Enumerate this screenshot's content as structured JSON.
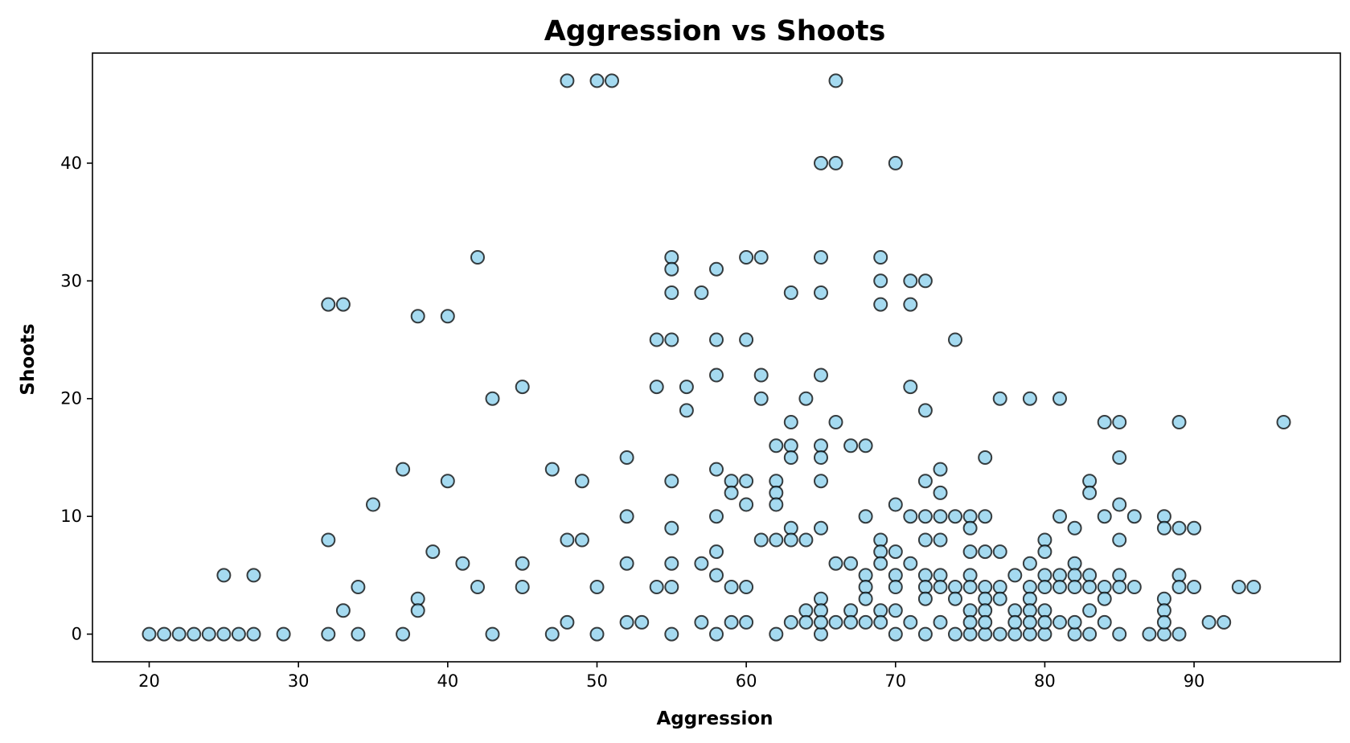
{
  "chart_data": {
    "type": "scatter",
    "title": "Aggression vs Shoots",
    "xlabel": "Aggression",
    "ylabel": "Shoots",
    "xlim": [
      16.2,
      99.8
    ],
    "ylim": [
      -2.35,
      49.35
    ],
    "xticks": [
      20,
      30,
      40,
      50,
      60,
      70,
      80,
      90
    ],
    "yticks": [
      0,
      10,
      20,
      30,
      40
    ],
    "grid": false,
    "marker_fill": "#87CEEB",
    "marker_edge": "#000000",
    "points": [
      [
        20,
        0
      ],
      [
        21,
        0
      ],
      [
        22,
        0
      ],
      [
        23,
        0
      ],
      [
        24,
        0
      ],
      [
        25,
        0
      ],
      [
        26,
        0
      ],
      [
        27,
        0
      ],
      [
        29,
        0
      ],
      [
        32,
        0
      ],
      [
        34,
        0
      ],
      [
        37,
        0
      ],
      [
        43,
        0
      ],
      [
        47,
        0
      ],
      [
        50,
        0
      ],
      [
        55,
        0
      ],
      [
        58,
        0
      ],
      [
        62,
        0
      ],
      [
        65,
        0
      ],
      [
        70,
        0
      ],
      [
        72,
        0
      ],
      [
        74,
        0
      ],
      [
        75,
        0
      ],
      [
        76,
        0
      ],
      [
        77,
        0
      ],
      [
        78,
        0
      ],
      [
        79,
        0
      ],
      [
        80,
        0
      ],
      [
        82,
        0
      ],
      [
        83,
        0
      ],
      [
        85,
        0
      ],
      [
        87,
        0
      ],
      [
        88,
        0
      ],
      [
        89,
        0
      ],
      [
        25,
        5
      ],
      [
        27,
        5
      ],
      [
        32,
        8
      ],
      [
        32,
        28
      ],
      [
        33,
        28
      ],
      [
        33,
        2
      ],
      [
        34,
        4
      ],
      [
        35,
        11
      ],
      [
        37,
        14
      ],
      [
        38,
        27
      ],
      [
        38,
        3
      ],
      [
        38,
        2
      ],
      [
        39,
        7
      ],
      [
        40,
        27
      ],
      [
        40,
        13
      ],
      [
        41,
        6
      ],
      [
        42,
        32
      ],
      [
        42,
        4
      ],
      [
        43,
        20
      ],
      [
        45,
        21
      ],
      [
        45,
        6
      ],
      [
        45,
        4
      ],
      [
        47,
        14
      ],
      [
        48,
        47
      ],
      [
        48,
        8
      ],
      [
        48,
        1
      ],
      [
        49,
        13
      ],
      [
        49,
        8
      ],
      [
        50,
        47
      ],
      [
        50,
        4
      ],
      [
        51,
        47
      ],
      [
        52,
        15
      ],
      [
        52,
        10
      ],
      [
        52,
        6
      ],
      [
        52,
        1
      ],
      [
        53,
        1
      ],
      [
        54,
        25
      ],
      [
        54,
        21
      ],
      [
        54,
        4
      ],
      [
        55,
        32
      ],
      [
        55,
        31
      ],
      [
        55,
        29
      ],
      [
        55,
        25
      ],
      [
        55,
        13
      ],
      [
        55,
        9
      ],
      [
        55,
        6
      ],
      [
        55,
        4
      ],
      [
        56,
        21
      ],
      [
        56,
        19
      ],
      [
        57,
        29
      ],
      [
        57,
        6
      ],
      [
        57,
        1
      ],
      [
        58,
        31
      ],
      [
        58,
        25
      ],
      [
        58,
        22
      ],
      [
        58,
        14
      ],
      [
        58,
        10
      ],
      [
        58,
        7
      ],
      [
        58,
        5
      ],
      [
        59,
        13
      ],
      [
        59,
        12
      ],
      [
        59,
        4
      ],
      [
        59,
        1
      ],
      [
        60,
        32
      ],
      [
        60,
        25
      ],
      [
        60,
        13
      ],
      [
        60,
        11
      ],
      [
        60,
        4
      ],
      [
        60,
        1
      ],
      [
        61,
        32
      ],
      [
        61,
        22
      ],
      [
        61,
        20
      ],
      [
        61,
        8
      ],
      [
        62,
        16
      ],
      [
        62,
        13
      ],
      [
        62,
        12
      ],
      [
        62,
        11
      ],
      [
        62,
        8
      ],
      [
        63,
        29
      ],
      [
        63,
        18
      ],
      [
        63,
        16
      ],
      [
        63,
        15
      ],
      [
        63,
        9
      ],
      [
        63,
        8
      ],
      [
        63,
        1
      ],
      [
        64,
        20
      ],
      [
        64,
        8
      ],
      [
        64,
        2
      ],
      [
        64,
        1
      ],
      [
        65,
        40
      ],
      [
        65,
        32
      ],
      [
        65,
        29
      ],
      [
        65,
        22
      ],
      [
        65,
        16
      ],
      [
        65,
        15
      ],
      [
        65,
        13
      ],
      [
        65,
        9
      ],
      [
        65,
        3
      ],
      [
        65,
        2
      ],
      [
        65,
        1
      ],
      [
        66,
        47
      ],
      [
        66,
        40
      ],
      [
        66,
        18
      ],
      [
        66,
        6
      ],
      [
        66,
        1
      ],
      [
        67,
        16
      ],
      [
        67,
        6
      ],
      [
        67,
        2
      ],
      [
        67,
        1
      ],
      [
        68,
        16
      ],
      [
        68,
        10
      ],
      [
        68,
        5
      ],
      [
        68,
        4
      ],
      [
        68,
        3
      ],
      [
        68,
        1
      ],
      [
        69,
        32
      ],
      [
        69,
        30
      ],
      [
        69,
        28
      ],
      [
        69,
        8
      ],
      [
        69,
        7
      ],
      [
        69,
        6
      ],
      [
        69,
        2
      ],
      [
        69,
        1
      ],
      [
        70,
        40
      ],
      [
        70,
        11
      ],
      [
        70,
        7
      ],
      [
        70,
        5
      ],
      [
        70,
        4
      ],
      [
        70,
        2
      ],
      [
        71,
        30
      ],
      [
        71,
        28
      ],
      [
        71,
        21
      ],
      [
        71,
        10
      ],
      [
        71,
        6
      ],
      [
        71,
        1
      ],
      [
        72,
        30
      ],
      [
        72,
        19
      ],
      [
        72,
        13
      ],
      [
        72,
        10
      ],
      [
        72,
        8
      ],
      [
        72,
        5
      ],
      [
        72,
        4
      ],
      [
        72,
        3
      ],
      [
        73,
        14
      ],
      [
        73,
        12
      ],
      [
        73,
        10
      ],
      [
        73,
        8
      ],
      [
        73,
        5
      ],
      [
        73,
        4
      ],
      [
        73,
        1
      ],
      [
        74,
        25
      ],
      [
        74,
        10
      ],
      [
        74,
        4
      ],
      [
        74,
        3
      ],
      [
        75,
        10
      ],
      [
        75,
        9
      ],
      [
        75,
        7
      ],
      [
        75,
        5
      ],
      [
        75,
        4
      ],
      [
        75,
        2
      ],
      [
        75,
        1
      ],
      [
        76,
        15
      ],
      [
        76,
        10
      ],
      [
        76,
        7
      ],
      [
        76,
        4
      ],
      [
        76,
        3
      ],
      [
        76,
        2
      ],
      [
        76,
        1
      ],
      [
        77,
        20
      ],
      [
        77,
        7
      ],
      [
        77,
        4
      ],
      [
        77,
        3
      ],
      [
        78,
        5
      ],
      [
        78,
        2
      ],
      [
        78,
        1
      ],
      [
        79,
        20
      ],
      [
        79,
        6
      ],
      [
        79,
        4
      ],
      [
        79,
        3
      ],
      [
        79,
        2
      ],
      [
        79,
        1
      ],
      [
        80,
        8
      ],
      [
        80,
        7
      ],
      [
        80,
        5
      ],
      [
        80,
        4
      ],
      [
        80,
        2
      ],
      [
        80,
        1
      ],
      [
        81,
        20
      ],
      [
        81,
        10
      ],
      [
        81,
        5
      ],
      [
        81,
        4
      ],
      [
        81,
        1
      ],
      [
        82,
        9
      ],
      [
        82,
        6
      ],
      [
        82,
        5
      ],
      [
        82,
        4
      ],
      [
        82,
        1
      ],
      [
        83,
        13
      ],
      [
        83,
        12
      ],
      [
        83,
        5
      ],
      [
        83,
        4
      ],
      [
        83,
        2
      ],
      [
        84,
        18
      ],
      [
        84,
        10
      ],
      [
        84,
        4
      ],
      [
        84,
        3
      ],
      [
        84,
        1
      ],
      [
        85,
        18
      ],
      [
        85,
        15
      ],
      [
        85,
        11
      ],
      [
        85,
        8
      ],
      [
        85,
        5
      ],
      [
        85,
        4
      ],
      [
        86,
        10
      ],
      [
        86,
        4
      ],
      [
        88,
        10
      ],
      [
        88,
        9
      ],
      [
        88,
        3
      ],
      [
        88,
        2
      ],
      [
        88,
        1
      ],
      [
        89,
        18
      ],
      [
        89,
        9
      ],
      [
        89,
        5
      ],
      [
        89,
        4
      ],
      [
        90,
        9
      ],
      [
        90,
        4
      ],
      [
        91,
        1
      ],
      [
        92,
        1
      ],
      [
        93,
        4
      ],
      [
        94,
        4
      ],
      [
        96,
        18
      ]
    ]
  }
}
